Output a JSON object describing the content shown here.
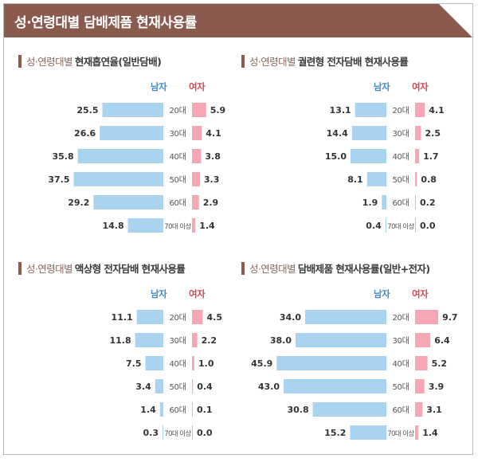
{
  "header": {
    "title": "성·연령대별 담배제품 현재사용률"
  },
  "legend": {
    "male": "남자",
    "female": "여자"
  },
  "colors": {
    "header": "#8a5a4e",
    "male_bar": "#a9d4f0",
    "female_bar": "#f4a6b2",
    "male_text": "#3d8bc9",
    "female_text": "#c94b5c"
  },
  "chart_data": [
    {
      "type": "bar",
      "title_prefix": "성·연령대별",
      "title": "현재흡연율(일반담배)",
      "categories": [
        "20대",
        "30대",
        "40대",
        "50대",
        "60대",
        "70대 이상"
      ],
      "series": [
        {
          "name": "남자",
          "values": [
            25.5,
            26.6,
            35.8,
            37.5,
            29.2,
            14.8
          ],
          "labels": [
            "25.5",
            "26.6",
            "35.8",
            "37.5",
            "29.2",
            "14.8"
          ]
        },
        {
          "name": "여자",
          "values": [
            5.9,
            4.1,
            3.8,
            3.3,
            2.9,
            1.4
          ],
          "labels": [
            "5.9",
            "4.1",
            "3.8",
            "3.3",
            "2.9",
            "1.4"
          ]
        }
      ]
    },
    {
      "type": "bar",
      "title_prefix": "성·연령대별",
      "title": "궐련형 전자담배 현재사용률",
      "categories": [
        "20대",
        "30대",
        "40대",
        "50대",
        "60대",
        "70대 이상"
      ],
      "series": [
        {
          "name": "남자",
          "values": [
            13.1,
            14.4,
            15.0,
            8.1,
            1.9,
            0.4
          ],
          "labels": [
            "13.1",
            "14.4",
            "15.0",
            "8.1",
            "1.9",
            "0.4"
          ]
        },
        {
          "name": "여자",
          "values": [
            4.1,
            2.5,
            1.7,
            0.8,
            0.2,
            0.0
          ],
          "labels": [
            "4.1",
            "2.5",
            "1.7",
            "0.8",
            "0.2",
            "0.0"
          ]
        }
      ]
    },
    {
      "type": "bar",
      "title_prefix": "성·연령대별",
      "title": "액상형 전자담배 현재사용률",
      "categories": [
        "20대",
        "30대",
        "40대",
        "50대",
        "60대",
        "70대 이상"
      ],
      "series": [
        {
          "name": "남자",
          "values": [
            11.1,
            11.8,
            7.5,
            3.4,
            1.4,
            0.3
          ],
          "labels": [
            "11.1",
            "11.8",
            "7.5",
            "3.4",
            "1.4",
            "0.3"
          ]
        },
        {
          "name": "여자",
          "values": [
            4.5,
            2.2,
            1.0,
            0.4,
            0.1,
            0.0
          ],
          "labels": [
            "4.5",
            "2.2",
            "1.0",
            "0.4",
            "0.1",
            "0.0"
          ]
        }
      ]
    },
    {
      "type": "bar",
      "title_prefix": "성·연령대별",
      "title": "담배제품 현재사용률(일반+전자)",
      "categories": [
        "20대",
        "30대",
        "40대",
        "50대",
        "60대",
        "70대 이상"
      ],
      "series": [
        {
          "name": "남자",
          "values": [
            34.0,
            38.0,
            45.9,
            43.0,
            30.8,
            15.2
          ],
          "labels": [
            "34.0",
            "38.0",
            "45.9",
            "43.0",
            "30.8",
            "15.2"
          ]
        },
        {
          "name": "여자",
          "values": [
            9.7,
            6.4,
            5.2,
            3.9,
            3.1,
            1.4
          ],
          "labels": [
            "9.7",
            "6.4",
            "5.2",
            "3.9",
            "3.1",
            "1.4"
          ]
        }
      ]
    }
  ]
}
